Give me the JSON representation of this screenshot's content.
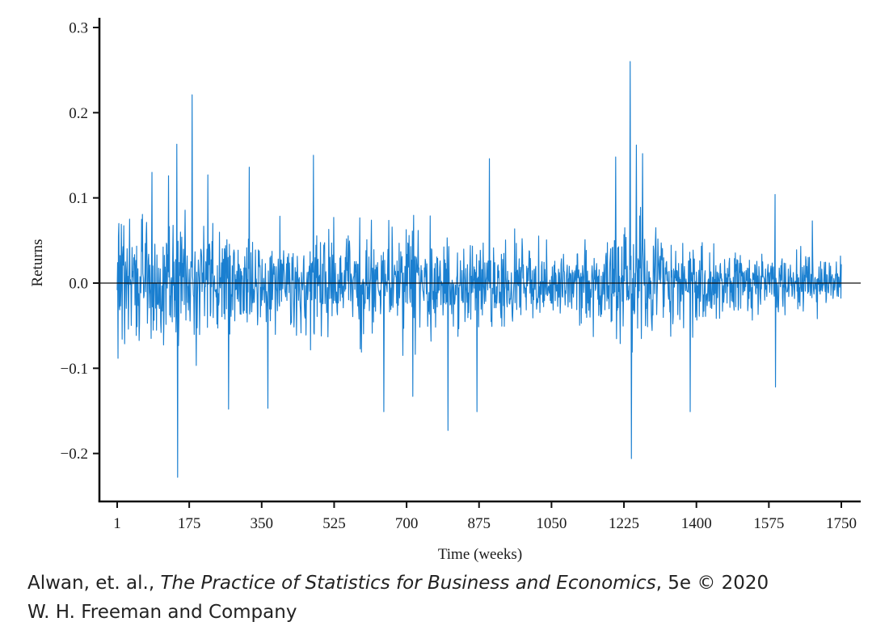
{
  "chart_data": {
    "type": "line",
    "title": "",
    "xlabel": "Time (weeks)",
    "ylabel": "Returns",
    "xlim": [
      1,
      1750
    ],
    "ylim": [
      -0.25,
      0.31
    ],
    "x_ticks": [
      1,
      175,
      350,
      525,
      700,
      875,
      1050,
      1225,
      1400,
      1575,
      1750
    ],
    "x_tick_labels": [
      "1",
      "175",
      "350",
      "525",
      "700",
      "875",
      "1050",
      "1225",
      "1400",
      "1575",
      "1750"
    ],
    "y_ticks": [
      -0.2,
      -0.1,
      0.0,
      0.1,
      0.2,
      0.3
    ],
    "y_tick_labels": [
      "−0.2",
      "−0.1",
      "0.0",
      "0.1",
      "0.2",
      "0.3"
    ],
    "grid": false,
    "reference_line_y": 0,
    "series_color": "#1a7fd0",
    "n_points": 1750,
    "notable_points": [
      {
        "x": 5,
        "y": 0.07
      },
      {
        "x": 85,
        "y": 0.13
      },
      {
        "x": 125,
        "y": 0.126
      },
      {
        "x": 145,
        "y": 0.163
      },
      {
        "x": 147,
        "y": -0.228
      },
      {
        "x": 182,
        "y": 0.221
      },
      {
        "x": 220,
        "y": 0.127
      },
      {
        "x": 270,
        "y": -0.148
      },
      {
        "x": 320,
        "y": 0.136
      },
      {
        "x": 365,
        "y": -0.147
      },
      {
        "x": 475,
        "y": 0.15
      },
      {
        "x": 645,
        "y": -0.151
      },
      {
        "x": 715,
        "y": -0.133
      },
      {
        "x": 800,
        "y": -0.173
      },
      {
        "x": 870,
        "y": -0.151
      },
      {
        "x": 900,
        "y": 0.146
      },
      {
        "x": 1205,
        "y": 0.148
      },
      {
        "x": 1240,
        "y": 0.26
      },
      {
        "x": 1243,
        "y": -0.206
      },
      {
        "x": 1255,
        "y": 0.162
      },
      {
        "x": 1270,
        "y": 0.152
      },
      {
        "x": 1385,
        "y": -0.151
      },
      {
        "x": 1590,
        "y": 0.104
      },
      {
        "x": 1590,
        "y": -0.122
      },
      {
        "x": 1680,
        "y": 0.073
      }
    ],
    "volatility_profile": [
      {
        "x": 1,
        "scale": 0.045
      },
      {
        "x": 150,
        "scale": 0.05
      },
      {
        "x": 300,
        "scale": 0.038
      },
      {
        "x": 450,
        "scale": 0.037
      },
      {
        "x": 600,
        "scale": 0.04
      },
      {
        "x": 750,
        "scale": 0.042
      },
      {
        "x": 900,
        "scale": 0.038
      },
      {
        "x": 1050,
        "scale": 0.025
      },
      {
        "x": 1150,
        "scale": 0.03
      },
      {
        "x": 1240,
        "scale": 0.05
      },
      {
        "x": 1350,
        "scale": 0.032
      },
      {
        "x": 1500,
        "scale": 0.03
      },
      {
        "x": 1650,
        "scale": 0.022
      },
      {
        "x": 1750,
        "scale": 0.018
      }
    ]
  },
  "credit": {
    "authors": "Alwan, et. al., ",
    "book_title": "The Practice of Statistics for Business and Economics",
    "edition": ", 5e © 2020",
    "publisher": "W. H. Freeman and Company"
  }
}
